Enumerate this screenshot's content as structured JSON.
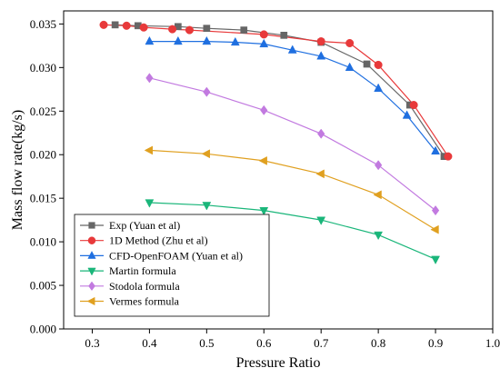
{
  "chart_data": {
    "type": "line",
    "title": "",
    "xlabel": "Pressure Ratio",
    "ylabel": "Mass flow rate(kg/s)",
    "xlim": [
      0.25,
      1.0
    ],
    "ylim": [
      0.0,
      0.0365
    ],
    "xticks": [
      "0.3",
      "0.4",
      "0.5",
      "0.6",
      "0.7",
      "0.8",
      "0.9",
      "1.0"
    ],
    "yticks": [
      "0.000",
      "0.005",
      "0.010",
      "0.015",
      "0.020",
      "0.025",
      "0.030",
      "0.035"
    ],
    "grid": false,
    "legend_position": "bottom-left",
    "series": [
      {
        "name": "Exp (Yuan et al)",
        "color": "#666666",
        "marker": "square",
        "x": [
          0.34,
          0.38,
          0.45,
          0.5,
          0.565,
          0.635,
          0.7,
          0.78,
          0.855,
          0.915
        ],
        "y": [
          0.0349,
          0.0348,
          0.0347,
          0.0345,
          0.0343,
          0.0337,
          0.0329,
          0.0304,
          0.0257,
          0.0198
        ]
      },
      {
        "name": "1D Method (Zhu et al)",
        "color": "#e8393a",
        "marker": "circle",
        "x": [
          0.32,
          0.36,
          0.39,
          0.44,
          0.47,
          0.6,
          0.7,
          0.75,
          0.8,
          0.862,
          0.922
        ],
        "y": [
          0.0349,
          0.0348,
          0.0346,
          0.0344,
          0.0343,
          0.0338,
          0.033,
          0.0328,
          0.0303,
          0.0257,
          0.0198
        ]
      },
      {
        "name": "CFD-OpenFOAM (Yuan et al)",
        "color": "#1f6fe0",
        "marker": "triangle-up",
        "x": [
          0.4,
          0.45,
          0.5,
          0.55,
          0.6,
          0.65,
          0.7,
          0.75,
          0.8,
          0.85,
          0.9
        ],
        "y": [
          0.033,
          0.033,
          0.033,
          0.0329,
          0.0327,
          0.032,
          0.0313,
          0.03,
          0.0276,
          0.0245,
          0.0204
        ]
      },
      {
        "name": "Martin formula",
        "color": "#1ab67a",
        "marker": "triangle-down",
        "x": [
          0.4,
          0.5,
          0.6,
          0.7,
          0.8,
          0.9
        ],
        "y": [
          0.0145,
          0.0142,
          0.0136,
          0.0125,
          0.0108,
          0.008
        ]
      },
      {
        "name": "Stodola formula",
        "color": "#c27ae0",
        "marker": "diamond",
        "x": [
          0.4,
          0.5,
          0.6,
          0.7,
          0.8,
          0.9
        ],
        "y": [
          0.0288,
          0.0272,
          0.0251,
          0.0224,
          0.0188,
          0.0136
        ]
      },
      {
        "name": "Vermes formula",
        "color": "#e0a020",
        "marker": "triangle-left",
        "x": [
          0.4,
          0.5,
          0.6,
          0.7,
          0.8,
          0.9
        ],
        "y": [
          0.0205,
          0.0201,
          0.0193,
          0.0178,
          0.0154,
          0.0114
        ]
      }
    ]
  }
}
